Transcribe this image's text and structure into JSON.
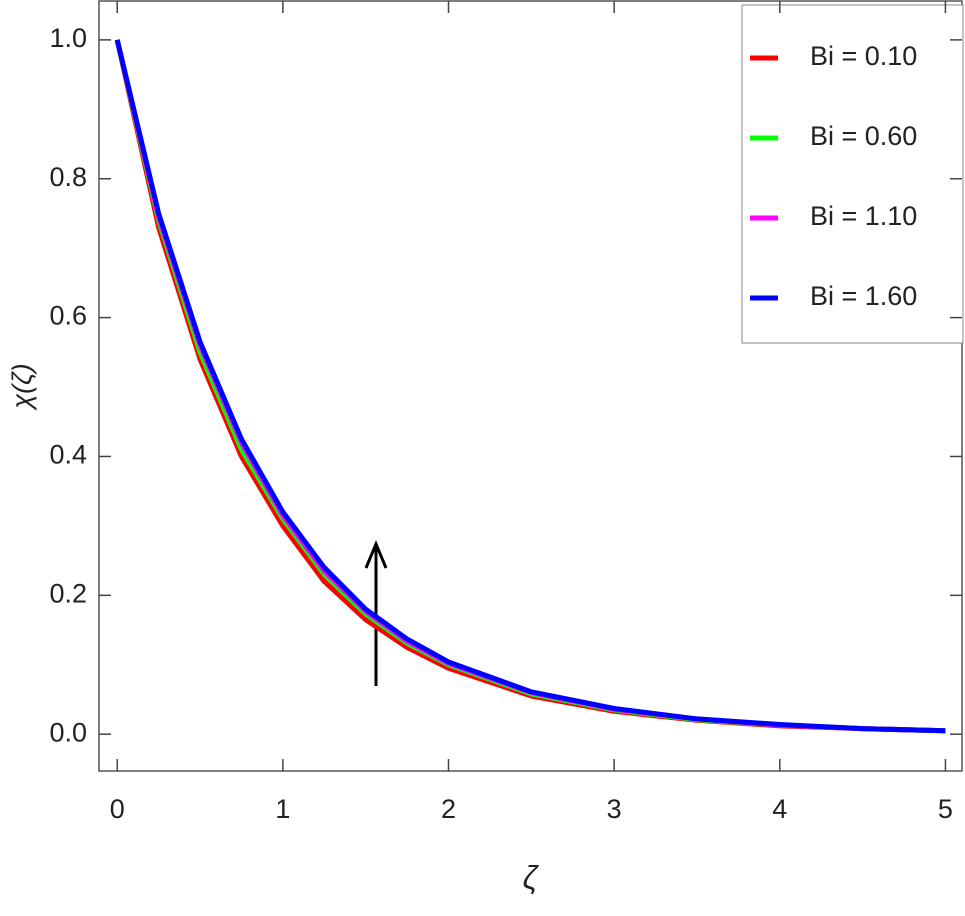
{
  "chart_data": {
    "type": "line",
    "xlabel": "ζ",
    "ylabel": "χ(ζ)",
    "x": [
      0,
      0.25,
      0.5,
      0.75,
      1,
      1.25,
      1.5,
      1.75,
      2,
      2.5,
      3,
      3.5,
      4,
      4.5,
      5
    ],
    "series": [
      {
        "name": "Bi = 0.10",
        "color": "#ff0000",
        "values": [
          1.0,
          0.73,
          0.54,
          0.4,
          0.3,
          0.22,
          0.165,
          0.125,
          0.095,
          0.055,
          0.033,
          0.02,
          0.012,
          0.008,
          0.005
        ]
      },
      {
        "name": "Bi = 0.60",
        "color": "#00ff00",
        "values": [
          1.0,
          0.74,
          0.55,
          0.41,
          0.31,
          0.23,
          0.173,
          0.131,
          0.1,
          0.058,
          0.035,
          0.021,
          0.013,
          0.008,
          0.005
        ]
      },
      {
        "name": "Bi = 1.10",
        "color": "#ff00ff",
        "values": [
          1.0,
          0.745,
          0.56,
          0.42,
          0.315,
          0.235,
          0.177,
          0.134,
          0.102,
          0.06,
          0.036,
          0.022,
          0.013,
          0.008,
          0.005
        ]
      },
      {
        "name": "Bi = 1.60",
        "color": "#0000ff",
        "values": [
          1.0,
          0.75,
          0.565,
          0.425,
          0.32,
          0.24,
          0.18,
          0.137,
          0.104,
          0.061,
          0.037,
          0.022,
          0.014,
          0.008,
          0.005
        ]
      }
    ],
    "xlim": [
      -0.11,
      5.1
    ],
    "ylim": [
      -0.053,
      1.056
    ],
    "xticks": [
      0,
      1,
      2,
      3,
      4,
      5
    ],
    "yticks": [
      {
        "value": 0,
        "label": "0.0"
      },
      0.2,
      0.4,
      0.6,
      0.8,
      {
        "value": 1,
        "label": "1.0"
      }
    ],
    "legend": "upper right"
  }
}
